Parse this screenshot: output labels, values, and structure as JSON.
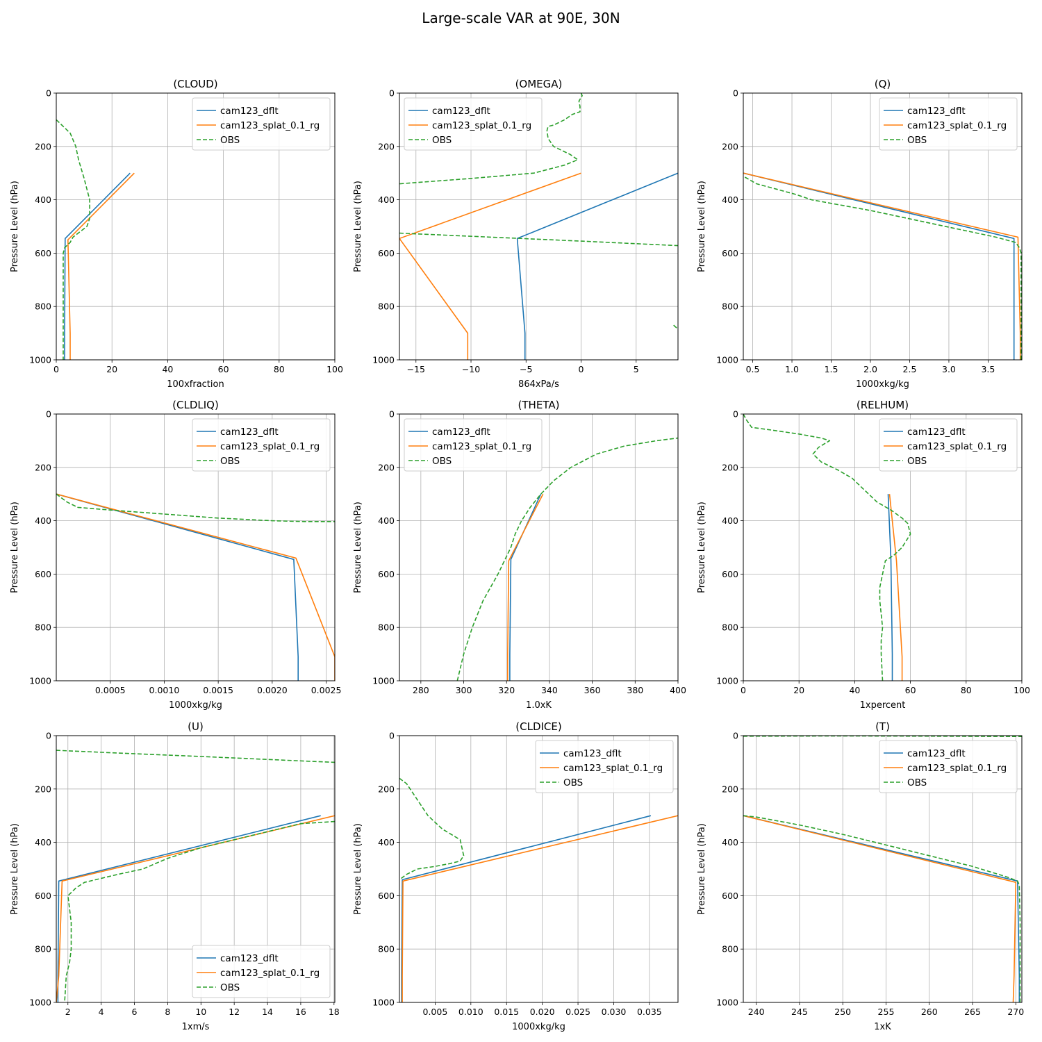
{
  "figure": {
    "title": "Large-scale VAR at 90E, 30N"
  },
  "colors": {
    "dflt": "#1f77b4",
    "splat": "#ff7f0e",
    "obs": "#2ca02c"
  },
  "chart_data": [
    {
      "type": "line",
      "title": "(CLOUD)",
      "xlabel": "100xfraction",
      "ylabel": "Pressure Level (hPa)",
      "xlim": [
        0,
        100
      ],
      "ylim": [
        1000,
        0
      ],
      "grid": true,
      "legend": "upper-right",
      "xticks": [
        0,
        20,
        40,
        60,
        80,
        100
      ],
      "xtick_labels": [
        "0",
        "20",
        "40",
        "60",
        "80",
        "100"
      ],
      "yticks": [
        0,
        200,
        400,
        600,
        800,
        1000
      ],
      "series": [
        {
          "name": "cam123_dflt",
          "style": "solid",
          "color": "#1f77b4",
          "x": [
            26.5,
            3.2,
            3.0,
            3.0
          ],
          "y": [
            300,
            545,
            900,
            1000
          ]
        },
        {
          "name": "cam123_splat_0.1_rg",
          "style": "solid",
          "color": "#ff7f0e",
          "x": [
            28.0,
            4.2,
            5.0,
            5.0
          ],
          "y": [
            300,
            550,
            900,
            1000
          ]
        },
        {
          "name": "OBS",
          "style": "dashed",
          "color": "#2ca02c",
          "x": [
            0,
            1,
            3,
            5,
            6,
            7,
            8,
            10,
            12,
            12,
            11,
            6,
            5,
            3,
            2.5,
            2.5,
            2.5,
            2.5,
            2.5
          ],
          "y": [
            100,
            110,
            130,
            150,
            175,
            200,
            250,
            320,
            400,
            470,
            500,
            540,
            560,
            580,
            600,
            700,
            800,
            900,
            1000
          ]
        }
      ]
    },
    {
      "type": "line",
      "title": "(OMEGA)",
      "xlabel": "864xPa/s",
      "ylabel": "Pressure Level (hPa)",
      "xlim": [
        -16.5,
        8.8
      ],
      "ylim": [
        1000,
        0
      ],
      "grid": true,
      "legend": "upper-left",
      "xticks": [
        -15,
        -10,
        -5,
        0,
        5
      ],
      "xtick_labels": [
        "−15",
        "−10",
        "−5",
        "0",
        "5"
      ],
      "yticks": [
        0,
        200,
        400,
        600,
        800,
        1000
      ],
      "series": [
        {
          "name": "cam123_dflt",
          "style": "solid",
          "color": "#1f77b4",
          "x": [
            8.8,
            -5.8,
            -5.1,
            -5.1
          ],
          "y": [
            300,
            545,
            900,
            1000
          ]
        },
        {
          "name": "cam123_splat_0.1_rg",
          "style": "solid",
          "color": "#ff7f0e",
          "x": [
            0,
            -16.5,
            -10.3,
            -10.3
          ],
          "y": [
            300,
            545,
            900,
            1000
          ]
        },
        {
          "name": "OBS",
          "style": "dashed",
          "color": "#2ca02c",
          "x": [
            0,
            0.1,
            -0.2,
            -0.1,
            -0.1,
            -0.8,
            -1.5,
            -2.5,
            -3.0,
            -3.1,
            -3.0,
            -2.5,
            -1.0,
            -0.3,
            -1.5,
            -4.3,
            -10.0,
            -16.5
          ],
          "y": [
            0,
            10,
            30,
            50,
            70,
            80,
            100,
            120,
            125,
            140,
            170,
            200,
            230,
            250,
            270,
            300,
            320,
            340
          ]
        },
        {
          "name": "OBS",
          "style": "dashed",
          "color": "#2ca02c",
          "x": [
            -16.5,
            0,
            8.8
          ],
          "y": [
            525,
            555,
            572
          ]
        },
        {
          "name": "OBS",
          "style": "dashed",
          "color": "#2ca02c",
          "x": [
            8.4,
            8.8
          ],
          "y": [
            870,
            885
          ]
        }
      ]
    },
    {
      "type": "line",
      "title": "(Q)",
      "xlabel": "1000xkg/kg",
      "ylabel": "Pressure Level (hPa)",
      "xlim": [
        0.38,
        3.93
      ],
      "ylim": [
        1000,
        0
      ],
      "grid": true,
      "legend": "upper-right",
      "xticks": [
        0.5,
        1.0,
        1.5,
        2.0,
        2.5,
        3.0,
        3.5
      ],
      "xtick_labels": [
        "0.5",
        "1.0",
        "1.5",
        "2.0",
        "2.5",
        "3.0",
        "3.5"
      ],
      "yticks": [
        0,
        200,
        400,
        600,
        800,
        1000
      ],
      "series": [
        {
          "name": "cam123_dflt",
          "style": "solid",
          "color": "#1f77b4",
          "x": [
            0.38,
            3.83,
            3.83,
            3.83
          ],
          "y": [
            300,
            545,
            900,
            1000
          ]
        },
        {
          "name": "cam123_splat_0.1_rg",
          "style": "solid",
          "color": "#ff7f0e",
          "x": [
            0.38,
            3.88,
            3.91,
            3.91
          ],
          "y": [
            300,
            540,
            900,
            1000
          ]
        },
        {
          "name": "OBS",
          "style": "dashed",
          "color": "#2ca02c",
          "x": [
            0.4,
            0.55,
            0.8,
            1.05,
            1.25,
            2.0,
            2.8,
            3.6,
            3.85,
            3.9,
            3.92,
            3.92,
            3.92,
            3.92
          ],
          "y": [
            315,
            340,
            360,
            380,
            400,
            440,
            490,
            540,
            560,
            580,
            600,
            800,
            900,
            1000
          ]
        }
      ]
    },
    {
      "type": "line",
      "title": "(CLDLIQ)",
      "xlabel": "1000xkg/kg",
      "ylabel": "Pressure Level (hPa)",
      "xlim": [
        0,
        0.00258
      ],
      "ylim": [
        1000,
        0
      ],
      "grid": true,
      "legend": "upper-right",
      "xticks": [
        0.0005,
        0.001,
        0.0015,
        0.002,
        0.0025
      ],
      "xtick_labels": [
        "0.0005",
        "0.0010",
        "0.0015",
        "0.0020",
        "0.0025"
      ],
      "yticks": [
        0,
        200,
        400,
        600,
        800,
        1000
      ],
      "series": [
        {
          "name": "cam123_dflt",
          "style": "solid",
          "color": "#1f77b4",
          "x": [
            0,
            0.0022,
            0.00224,
            0.00224
          ],
          "y": [
            300,
            545,
            910,
            1000
          ]
        },
        {
          "name": "cam123_splat_0.1_rg",
          "style": "solid",
          "color": "#ff7f0e",
          "x": [
            0,
            0.00222,
            0.00258,
            0.00258
          ],
          "y": [
            300,
            540,
            910,
            1000
          ]
        },
        {
          "name": "OBS",
          "style": "dashed",
          "color": "#2ca02c",
          "x": [
            0,
            0.0001,
            0.0002,
            0.0005,
            0.001,
            0.0015,
            0.002,
            0.0023,
            0.00258
          ],
          "y": [
            300,
            330,
            350,
            360,
            375,
            390,
            400,
            403,
            403
          ]
        }
      ]
    },
    {
      "type": "line",
      "title": "(THETA)",
      "xlabel": "1.0xK",
      "ylabel": "Pressure Level (hPa)",
      "xlim": [
        270,
        400
      ],
      "ylim": [
        1000,
        0
      ],
      "grid": true,
      "legend": "upper-left",
      "xticks": [
        280,
        300,
        320,
        340,
        360,
        380,
        400
      ],
      "xtick_labels": [
        "280",
        "300",
        "320",
        "340",
        "360",
        "380",
        "400"
      ],
      "yticks": [
        0,
        200,
        400,
        600,
        800,
        1000
      ],
      "series": [
        {
          "name": "cam123_dflt",
          "style": "solid",
          "color": "#1f77b4",
          "x": [
            336,
            322,
            321.5,
            321.5
          ],
          "y": [
            300,
            545,
            900,
            1000
          ]
        },
        {
          "name": "cam123_splat_0.1_rg",
          "style": "solid",
          "color": "#ff7f0e",
          "x": [
            337,
            321,
            320.5,
            320.5
          ],
          "y": [
            300,
            550,
            900,
            1000
          ]
        },
        {
          "name": "OBS",
          "style": "dashed",
          "color": "#2ca02c",
          "x": [
            297,
            300,
            304,
            309,
            316,
            322,
            324,
            327,
            331,
            336,
            342,
            350,
            362,
            375,
            390,
            400
          ],
          "y": [
            1000,
            900,
            800,
            700,
            600,
            500,
            450,
            400,
            350,
            300,
            250,
            200,
            150,
            120,
            100,
            90
          ]
        }
      ]
    },
    {
      "type": "line",
      "title": "(RELHUM)",
      "xlabel": "1xpercent",
      "ylabel": "Pressure Level (hPa)",
      "xlim": [
        0,
        100
      ],
      "ylim": [
        1000,
        0
      ],
      "grid": true,
      "legend": "upper-right",
      "xticks": [
        0,
        20,
        40,
        60,
        80,
        100
      ],
      "xtick_labels": [
        "0",
        "20",
        "40",
        "60",
        "80",
        "100"
      ],
      "yticks": [
        0,
        200,
        400,
        600,
        800,
        1000
      ],
      "series": [
        {
          "name": "cam123_dflt",
          "style": "solid",
          "color": "#1f77b4",
          "x": [
            52,
            53,
            53.5,
            53.5
          ],
          "y": [
            300,
            545,
            900,
            1000
          ]
        },
        {
          "name": "cam123_splat_0.1_rg",
          "style": "solid",
          "color": "#ff7f0e",
          "x": [
            52.5,
            55,
            57,
            57
          ],
          "y": [
            300,
            550,
            910,
            1000
          ]
        },
        {
          "name": "OBS",
          "style": "dashed",
          "color": "#2ca02c",
          "x": [
            0,
            1,
            3,
            10,
            20,
            28,
            31,
            27,
            25,
            28,
            34,
            39,
            42,
            45,
            48,
            53,
            57,
            59,
            60,
            57,
            54,
            51,
            50,
            49,
            49,
            50,
            49.5,
            49.5,
            50
          ],
          "y": [
            0,
            20,
            50,
            60,
            75,
            90,
            100,
            125,
            150,
            180,
            210,
            240,
            270,
            300,
            330,
            360,
            390,
            410,
            450,
            500,
            530,
            550,
            600,
            650,
            700,
            800,
            850,
            900,
            1000
          ]
        }
      ]
    },
    {
      "type": "line",
      "title": "(U)",
      "xlabel": "1xm/s",
      "ylabel": "Pressure Level (hPa)",
      "xlim": [
        1.3,
        18.05
      ],
      "ylim": [
        1000,
        0
      ],
      "grid": true,
      "legend": "lower-right",
      "xticks": [
        2,
        4,
        6,
        8,
        10,
        12,
        14,
        16,
        18
      ],
      "xtick_labels": [
        "2",
        "4",
        "6",
        "8",
        "10",
        "12",
        "14",
        "16",
        "18"
      ],
      "yticks": [
        0,
        200,
        400,
        600,
        800,
        1000
      ],
      "series": [
        {
          "name": "cam123_dflt",
          "style": "solid",
          "color": "#1f77b4",
          "x": [
            17.2,
            1.45,
            1.4,
            1.4
          ],
          "y": [
            300,
            545,
            900,
            1000
          ]
        },
        {
          "name": "cam123_splat_0.1_rg",
          "style": "solid",
          "color": "#ff7f0e",
          "x": [
            18.05,
            1.65,
            1.45,
            1.3
          ],
          "y": [
            300,
            545,
            900,
            1000
          ]
        },
        {
          "name": "OBS",
          "style": "dashed",
          "color": "#2ca02c",
          "x": [
            1.3,
            5,
            10,
            15,
            18.05
          ],
          "y": [
            55,
            65,
            78,
            92,
            100
          ]
        },
        {
          "name": "OBS",
          "style": "dashed",
          "color": "#2ca02c",
          "x": [
            18.05,
            16,
            14,
            12,
            10,
            8,
            6.5,
            5,
            3,
            2.5,
            2,
            2.1,
            2.2,
            2.2,
            2.1,
            1.9,
            1.8
          ],
          "y": [
            322,
            330,
            360,
            390,
            420,
            460,
            500,
            520,
            550,
            570,
            600,
            650,
            700,
            800,
            850,
            900,
            1000
          ]
        }
      ]
    },
    {
      "type": "line",
      "title": "(CLDICE)",
      "xlabel": "1000xkg/kg",
      "ylabel": "Pressure Level (hPa)",
      "xlim": [
        0,
        0.039
      ],
      "ylim": [
        1000,
        0
      ],
      "grid": true,
      "legend": "upper-right",
      "xticks": [
        0.005,
        0.01,
        0.015,
        0.02,
        0.025,
        0.03,
        0.035
      ],
      "xtick_labels": [
        "0.005",
        "0.010",
        "0.015",
        "0.020",
        "0.025",
        "0.030",
        "0.035"
      ],
      "yticks": [
        0,
        200,
        400,
        600,
        800,
        1000
      ],
      "series": [
        {
          "name": "cam123_dflt",
          "style": "solid",
          "color": "#1f77b4",
          "x": [
            0.0352,
            0.0004,
            0.0003,
            0.0003
          ],
          "y": [
            300,
            540,
            900,
            1000
          ]
        },
        {
          "name": "cam123_splat_0.1_rg",
          "style": "solid",
          "color": "#ff7f0e",
          "x": [
            0.039,
            0.0005,
            0.0004,
            0.0004
          ],
          "y": [
            300,
            545,
            900,
            1000
          ]
        },
        {
          "name": "OBS",
          "style": "dashed",
          "color": "#2ca02c",
          "x": [
            0,
            0.001,
            0.002,
            0.004,
            0.006,
            0.0085,
            0.009,
            0.0085,
            0.007,
            0.005,
            0.0025,
            0.001,
            0
          ],
          "y": [
            160,
            180,
            220,
            300,
            350,
            390,
            450,
            470,
            480,
            490,
            500,
            520,
            540
          ]
        }
      ]
    },
    {
      "type": "line",
      "title": "(T)",
      "xlabel": "1xK",
      "ylabel": "Pressure Level (hPa)",
      "xlim": [
        238.5,
        270.7
      ],
      "ylim": [
        1000,
        0
      ],
      "grid": true,
      "legend": "upper-right",
      "xticks": [
        240,
        245,
        250,
        255,
        260,
        265,
        270
      ],
      "xtick_labels": [
        "240",
        "245",
        "250",
        "255",
        "260",
        "265",
        "270"
      ],
      "yticks": [
        0,
        200,
        400,
        600,
        800,
        1000
      ],
      "series": [
        {
          "name": "cam123_dflt",
          "style": "solid",
          "color": "#1f77b4",
          "x": [
            238.5,
            270.2,
            270.4,
            270.4
          ],
          "y": [
            300,
            545,
            900,
            1000
          ]
        },
        {
          "name": "cam123_splat_0.1_rg",
          "style": "solid",
          "color": "#ff7f0e",
          "x": [
            238.5,
            270.0,
            269.8,
            269.7
          ],
          "y": [
            300,
            550,
            900,
            1000
          ]
        },
        {
          "name": "OBS",
          "style": "dashed",
          "color": "#2ca02c",
          "x": [
            238.5,
            250,
            262,
            270.7
          ],
          "y": [
            2,
            1,
            2,
            3
          ]
        },
        {
          "name": "OBS",
          "style": "dashed",
          "color": "#2ca02c",
          "x": [
            238.5,
            240,
            245,
            250,
            255,
            260,
            265,
            269,
            270.2,
            270.4,
            270.5,
            270.5,
            270.5
          ],
          "y": [
            300,
            305,
            335,
            370,
            410,
            450,
            490,
            530,
            545,
            560,
            700,
            900,
            1000
          ]
        }
      ]
    }
  ]
}
